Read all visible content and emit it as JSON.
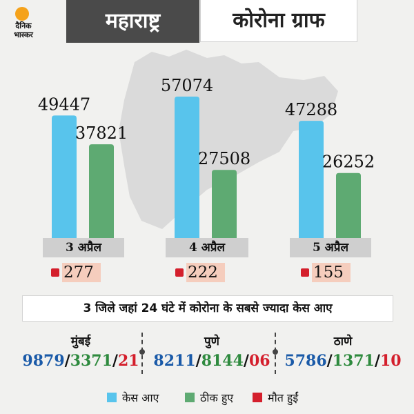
{
  "logo": {
    "line1": "दैनिक",
    "line2": "भास्कर"
  },
  "header": {
    "state": "महाराष्ट्र",
    "title": "कोरोना ग्राफ"
  },
  "colors": {
    "cases": "#58c4ec",
    "recovered": "#5eaa72",
    "deaths": "#d41f2c",
    "header_dark": "#4a4a4a"
  },
  "chart_data": {
    "type": "bar",
    "categories": [
      "3 अप्रैल",
      "4 अप्रैल",
      "5 अप्रैल"
    ],
    "series": [
      {
        "name": "केस आए",
        "values": [
          49447,
          57074,
          47288
        ]
      },
      {
        "name": "ठीक हुए",
        "values": [
          37821,
          27508,
          26252
        ]
      }
    ],
    "deaths": [
      "277",
      "222",
      "155"
    ],
    "ylim": [
      0,
      57074
    ]
  },
  "districts": {
    "heading": "3 जिले जहां 24 घंटे में कोरोना के सबसे ज्यादा केस आए",
    "items": [
      {
        "name": "मुंबई",
        "cases": "9879",
        "recovered": "3371",
        "deaths": "21"
      },
      {
        "name": "पुणे",
        "cases": "8211",
        "recovered": "8144",
        "deaths": "06"
      },
      {
        "name": "ठाणे",
        "cases": "5786",
        "recovered": "1371",
        "deaths": "10"
      }
    ]
  },
  "legend": {
    "cases": "केस आए",
    "recovered": "ठीक हुए",
    "deaths": "मौत हुईं"
  }
}
